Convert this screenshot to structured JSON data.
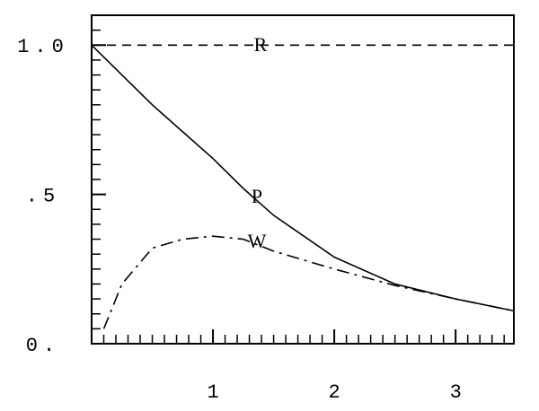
{
  "chart_data": {
    "type": "line",
    "x": [
      0,
      0.1,
      0.25,
      0.5,
      0.75,
      1,
      1.25,
      1.5,
      2,
      2.5,
      3,
      3.48
    ],
    "series": [
      {
        "name": "R",
        "color": "#000000",
        "style": "dashed",
        "values": [
          1,
          1,
          1,
          1,
          1,
          1,
          1,
          1,
          1,
          1,
          1,
          1
        ]
      },
      {
        "name": "P",
        "color": "#000000",
        "style": "solid",
        "values": [
          1,
          0.96,
          0.9,
          0.8,
          0.71,
          0.62,
          0.52,
          0.43,
          0.29,
          0.2,
          0.15,
          0.11
        ]
      },
      {
        "name": "W",
        "color": "#000000",
        "style": "dashdot",
        "values": [
          null,
          0.05,
          0.2,
          0.32,
          0.35,
          0.36,
          0.35,
          0.31,
          0.25,
          0.195,
          0.15,
          0.11
        ]
      }
    ],
    "xlim": [
      0,
      3.48
    ],
    "ylim": [
      0,
      1.1
    ],
    "xticks": [
      1,
      2,
      3
    ],
    "yticks": [
      {
        "value": 0,
        "label": "0."
      },
      {
        "value": 0.5,
        "label": ".5"
      },
      {
        "value": 1,
        "label": "1.0"
      }
    ],
    "xminorticks": [
      0.1,
      0.2,
      0.3,
      0.4,
      0.5,
      0.6,
      0.7,
      0.8,
      0.9,
      1.1,
      1.2,
      1.3,
      1.4,
      1.5,
      1.6,
      1.7,
      1.8,
      1.9,
      2.1,
      2.2,
      2.3,
      2.4,
      2.5,
      2.6,
      2.7,
      2.8,
      2.9,
      3.1,
      3.2,
      3.3,
      3.4
    ],
    "yminorticks": [
      0.05,
      0.1,
      0.15,
      0.2,
      0.25,
      0.3,
      0.35,
      0.4,
      0.45,
      0.55,
      0.6,
      0.65,
      0.7,
      0.75,
      0.8,
      0.85,
      0.9,
      0.95,
      1.05
    ]
  }
}
